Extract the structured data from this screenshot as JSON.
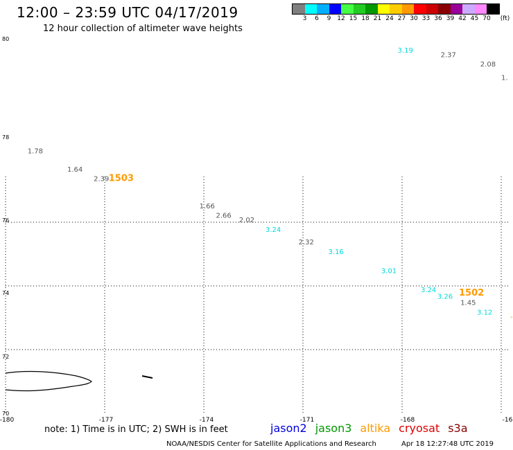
{
  "header": {
    "title": "12:00 – 23:59 UTC 04/17/2019",
    "subtitle": "12 hour collection of altimeter wave heights"
  },
  "colorbar": {
    "colors": [
      "#7f7f7f",
      "#00ffff",
      "#00b0ff",
      "#0000ff",
      "#44ff44",
      "#22cc22",
      "#009900",
      "#ffff00",
      "#ffcc00",
      "#ff9900",
      "#ff0000",
      "#cc0000",
      "#880000",
      "#990099",
      "#ccaaff",
      "#ff88ff",
      "#000000"
    ],
    "labels": [
      "3",
      "6",
      "9",
      "12",
      "15",
      "18",
      "21",
      "24",
      "27",
      "30",
      "33",
      "36",
      "39",
      "42",
      "45",
      "70"
    ],
    "unit": "(ft)"
  },
  "map": {
    "lat_labels": [
      "80",
      "78",
      "76",
      "74",
      "72",
      "70"
    ],
    "lon_labels": [
      "-180",
      "-177",
      "-174",
      "-171",
      "-168",
      "-16"
    ],
    "grid_lon": [
      -177,
      -174,
      -171,
      -168,
      -165
    ],
    "grid_lat": [
      76,
      74,
      72
    ],
    "observations": [
      {
        "value": "3.19",
        "lon": -167.9,
        "lat": 79.7,
        "color": "#00d8d8"
      },
      {
        "value": "2.37",
        "lon": -166.6,
        "lat": 79.6,
        "color": "#555555"
      },
      {
        "value": "2.08",
        "lon": -165.4,
        "lat": 79.4,
        "color": "#555555"
      },
      {
        "value": "1.",
        "lon": -164.9,
        "lat": 79.1,
        "color": "#555555"
      },
      {
        "value": "1.78",
        "lon": -179.1,
        "lat": 77.5,
        "color": "#555555"
      },
      {
        "value": "1.64",
        "lon": -177.9,
        "lat": 77.1,
        "color": "#555555"
      },
      {
        "value": "2.39",
        "lon": -177.1,
        "lat": 76.9,
        "color": "#555555"
      },
      {
        "value": "1.66",
        "lon": -173.9,
        "lat": 76.3,
        "color": "#555555"
      },
      {
        "value": "2.66",
        "lon": -173.4,
        "lat": 76.1,
        "color": "#555555"
      },
      {
        "value": "2.02",
        "lon": -172.7,
        "lat": 76.0,
        "color": "#555555"
      },
      {
        "value": "3.24",
        "lon": -171.9,
        "lat": 75.7,
        "color": "#00d8d8"
      },
      {
        "value": "2.32",
        "lon": -170.9,
        "lat": 75.3,
        "color": "#555555"
      },
      {
        "value": "3.16",
        "lon": -170.0,
        "lat": 75.0,
        "color": "#00d8d8"
      },
      {
        "value": "3.01",
        "lon": -168.4,
        "lat": 74.4,
        "color": "#00d8d8"
      },
      {
        "value": "3.24",
        "lon": -167.2,
        "lat": 73.8,
        "color": "#00d8d8"
      },
      {
        "value": "3.26",
        "lon": -166.7,
        "lat": 73.6,
        "color": "#00d8d8"
      },
      {
        "value": "1.45",
        "lon": -166.0,
        "lat": 73.4,
        "color": "#555555"
      },
      {
        "value": "3.12",
        "lon": -165.5,
        "lat": 73.1,
        "color": "#00d8d8"
      }
    ],
    "time_marks": [
      {
        "value": "1503",
        "lon": -176.5,
        "lat": 76.9,
        "color": "#ff9900"
      },
      {
        "value": "1502",
        "lon": -165.9,
        "lat": 73.7,
        "color": "#ff9900"
      }
    ]
  },
  "footer": {
    "note": "note: 1) Time is in UTC; 2) SWH is in feet",
    "satellites": [
      {
        "name": "jason2",
        "color": "#0000dd"
      },
      {
        "name": "jason3",
        "color": "#009900"
      },
      {
        "name": "altika",
        "color": "#ff9900"
      },
      {
        "name": "cryosat",
        "color": "#dd0000"
      },
      {
        "name": "s3a",
        "color": "#880000"
      }
    ],
    "credit": "NOAA/NESDIS Center for Satellite Applications and Research",
    "timestamp": "Apr 18 12:27:48 UTC 2019"
  }
}
